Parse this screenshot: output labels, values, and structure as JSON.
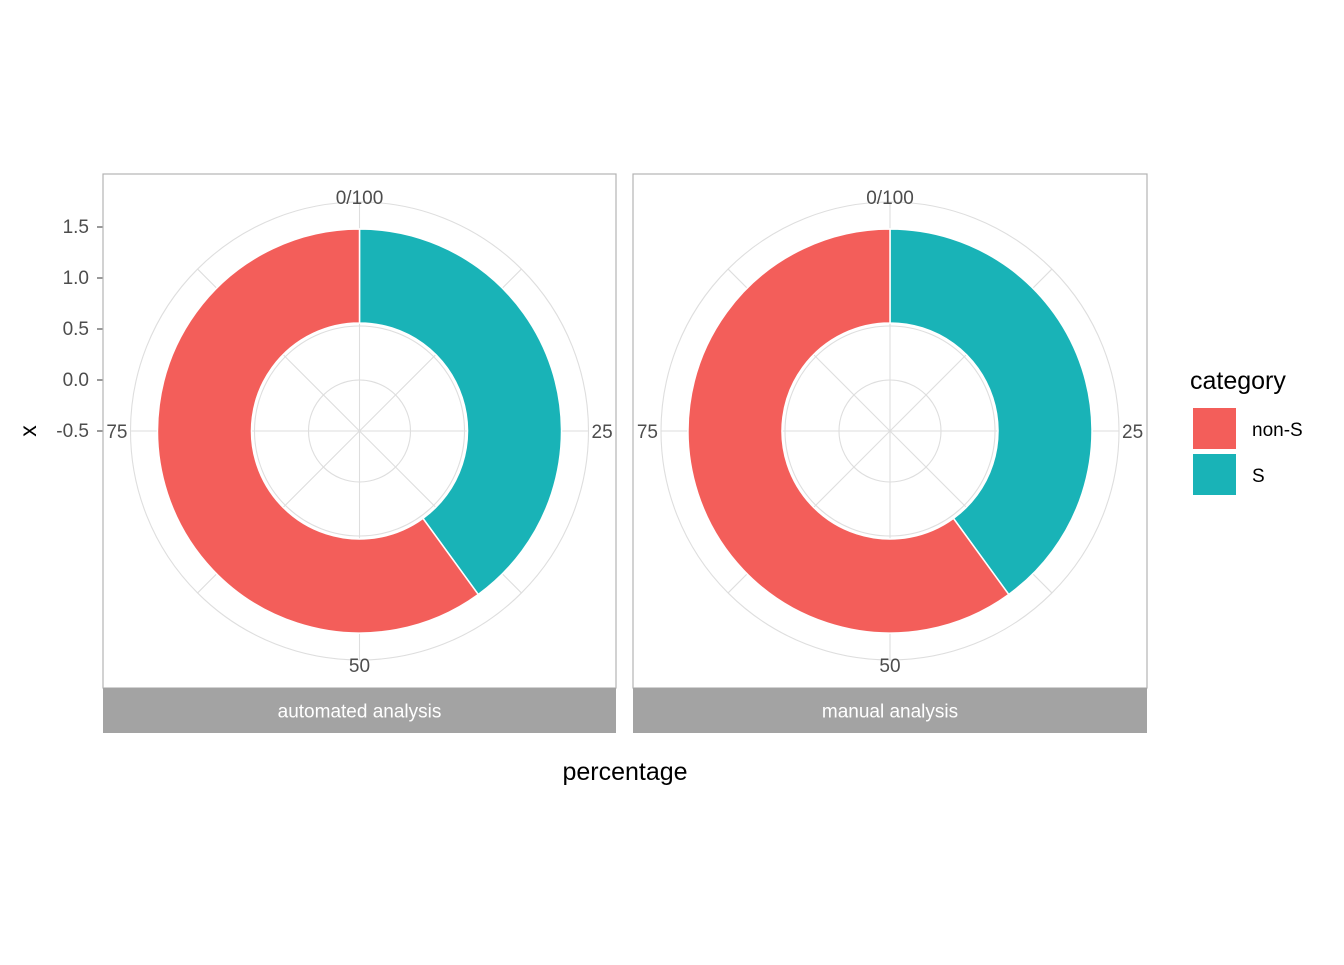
{
  "chart_data": {
    "type": "pie",
    "subtype": "donut",
    "coord": "polar",
    "xlabel": "percentage",
    "ylabel": "x",
    "theta_ticks": [
      "0/100",
      "25",
      "50",
      "75"
    ],
    "r_ticks": [
      "1.5",
      "1.0",
      "0.5",
      "0.0",
      "-0.5"
    ],
    "r_tick_values": [
      1.5,
      1.0,
      0.5,
      0.0,
      -0.5
    ],
    "legend": {
      "title": "category",
      "position": "right",
      "entries": [
        {
          "label": "non-S",
          "color": "#F35E5A"
        },
        {
          "label": "S",
          "color": "#19B3B7"
        }
      ]
    },
    "panels": [
      {
        "facet_label": "automated analysis",
        "slices": [
          {
            "category": "S",
            "value": 40
          },
          {
            "category": "non-S",
            "value": 60
          }
        ]
      },
      {
        "facet_label": "manual analysis",
        "slices": [
          {
            "category": "S",
            "value": 40
          },
          {
            "category": "non-S",
            "value": 60
          }
        ]
      }
    ],
    "grid": true,
    "colors": {
      "non-S": "#F35E5A",
      "S": "#19B3B7",
      "strip_bg": "#A3A3A3",
      "strip_text": "#FFFFFF",
      "grid": "#DEDEDE",
      "panel_border": "#B3B3B3",
      "tick_text": "#4D4D4D"
    }
  }
}
